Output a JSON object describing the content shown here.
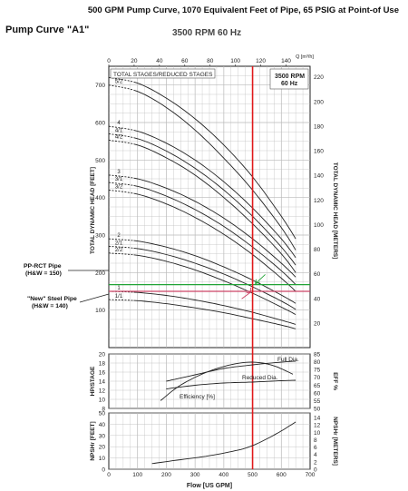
{
  "header": {
    "title": "500 GPM Pump Curve, 1070 Equivalent Feet of Pipe, 65 PSIG at Point-of Use",
    "curve_name": "Pump Curve \"A1\"",
    "speed": "3500 RPM 60 Hz"
  },
  "annotations": {
    "stages_title": "TOTAL STAGES/REDUCED STAGES",
    "rpm_box_line1": "3500 RPM",
    "rpm_box_line2": "60 Hz",
    "pprct_line1": "PP-RCT Pipe",
    "pprct_line2": "(H&W = 150)",
    "steel_line1": "\"New\" Steel Pipe",
    "steel_line2": "(H&W = 140)",
    "full_dia": "Full Dia.",
    "reduced_dia": "Reduced Dia.",
    "efficiency": "Efficiency [%]"
  },
  "colors": {
    "red_line": "#e0191b",
    "green_line": "#21a336",
    "pink_line": "#cc4466",
    "curve": "#222222",
    "grid": "#b9b9b9"
  },
  "chart_data": [
    {
      "type": "line",
      "name": "head",
      "xlabel": "Flow [US GPM]",
      "ylabel": "TOTAL DYNAMIC HEAD [FEET]",
      "y2label": "TOTAL DYNAMIC HEAD [METERS]",
      "x2label": "Q [m³/h]",
      "xlim": [
        0,
        700
      ],
      "ylim": [
        0,
        750
      ],
      "x_ticks": [
        0,
        100,
        200,
        300,
        400,
        500,
        600,
        700
      ],
      "y_ticks": [
        100,
        200,
        300,
        400,
        500,
        600,
        700
      ],
      "x2_ticks": [
        0,
        20,
        40,
        60,
        80,
        100,
        120,
        140
      ],
      "y2_ticks": [
        20,
        40,
        60,
        80,
        100,
        120,
        140,
        160,
        180,
        200,
        220
      ],
      "series": [
        {
          "name": "5/1",
          "x": [
            0,
            100,
            200,
            300,
            400,
            500,
            600,
            650
          ],
          "y": [
            720,
            705,
            665,
            610,
            540,
            455,
            350,
            290
          ]
        },
        {
          "name": "5/2",
          "x": [
            0,
            100,
            200,
            300,
            400,
            500,
            600,
            650
          ],
          "y": [
            700,
            683,
            640,
            580,
            505,
            420,
            320,
            260
          ]
        },
        {
          "name": "4",
          "x": [
            0,
            100,
            200,
            300,
            400,
            500,
            600,
            650
          ],
          "y": [
            590,
            577,
            545,
            500,
            442,
            372,
            290,
            240
          ]
        },
        {
          "name": "4/1",
          "x": [
            0,
            100,
            200,
            300,
            400,
            500,
            600,
            650
          ],
          "y": [
            570,
            557,
            524,
            478,
            420,
            350,
            268,
            220
          ]
        },
        {
          "name": "4/2",
          "x": [
            0,
            100,
            200,
            300,
            400,
            500,
            600,
            650
          ],
          "y": [
            553,
            540,
            506,
            460,
            400,
            330,
            250,
            200
          ]
        },
        {
          "name": "3",
          "x": [
            0,
            100,
            200,
            300,
            400,
            500,
            600,
            650
          ],
          "y": [
            460,
            450,
            425,
            390,
            345,
            290,
            225,
            188
          ]
        },
        {
          "name": "3/1",
          "x": [
            0,
            100,
            200,
            300,
            400,
            500,
            600,
            650
          ],
          "y": [
            440,
            430,
            404,
            368,
            323,
            268,
            205,
            168
          ]
        },
        {
          "name": "3/2",
          "x": [
            0,
            100,
            200,
            300,
            400,
            500,
            600,
            650
          ],
          "y": [
            420,
            409,
            383,
            347,
            302,
            248,
            185,
            150
          ]
        },
        {
          "name": "2",
          "x": [
            0,
            100,
            200,
            300,
            400,
            500,
            600,
            650
          ],
          "y": [
            290,
            284,
            268,
            245,
            215,
            180,
            140,
            118
          ]
        },
        {
          "name": "2/1",
          "x": [
            0,
            100,
            200,
            300,
            400,
            500,
            600,
            650
          ],
          "y": [
            270,
            264,
            248,
            225,
            196,
            162,
            124,
            102
          ]
        },
        {
          "name": "2/2",
          "x": [
            0,
            100,
            200,
            300,
            400,
            500,
            600,
            650
          ],
          "y": [
            252,
            246,
            230,
            207,
            178,
            145,
            108,
            88
          ]
        },
        {
          "name": "1",
          "x": [
            0,
            100,
            200,
            300,
            400,
            500,
            600,
            650
          ],
          "y": [
            150,
            147,
            139,
            127,
            112,
            94,
            73,
            62
          ]
        },
        {
          "name": "1/1",
          "x": [
            0,
            100,
            200,
            300,
            400,
            500,
            600,
            650
          ],
          "y": [
            128,
            125,
            117,
            106,
            93,
            77,
            60,
            50
          ]
        }
      ],
      "system_curves": [
        {
          "name": "PP-RCT Pipe (H&W = 150)",
          "x": [
            0,
            500,
            700
          ],
          "y": [
            168,
            168,
            168
          ]
        },
        {
          "name": "\"New\" Steel Pipe (H&W = 140)",
          "x": [
            0,
            500,
            700
          ],
          "y": [
            150,
            150,
            150
          ]
        }
      ],
      "operating_flow": 500
    },
    {
      "type": "line",
      "name": "power-efficiency",
      "ylabel": "HP/STAGE",
      "y2label": "EFF %",
      "xlim": [
        0,
        700
      ],
      "ylim": [
        8,
        20
      ],
      "y_ticks": [
        8,
        10,
        12,
        14,
        16,
        18,
        20
      ],
      "y2_ticks": [
        50,
        55,
        60,
        65,
        70,
        75,
        80,
        85
      ],
      "y2lim": [
        50,
        85
      ],
      "series": [
        {
          "name": "Full Dia.",
          "axis": "left",
          "x": [
            200,
            300,
            400,
            500,
            600,
            650
          ],
          "y": [
            14.0,
            15.4,
            16.8,
            17.6,
            18.2,
            18.4
          ]
        },
        {
          "name": "Reduced Dia.",
          "axis": "left",
          "x": [
            200,
            300,
            400,
            500,
            600,
            650
          ],
          "y": [
            12.3,
            13.1,
            13.6,
            13.8,
            14.1,
            14.2
          ]
        },
        {
          "name": "Efficiency [%]",
          "axis": "right",
          "x": [
            180,
            250,
            350,
            450,
            520,
            580,
            640
          ],
          "y": [
            55,
            65,
            74,
            79,
            79.5,
            77,
            72
          ]
        }
      ]
    },
    {
      "type": "line",
      "name": "npsh",
      "ylabel": "NPSHr [FEET]",
      "y2label": "NPSHr [METERS]",
      "xlim": [
        0,
        700
      ],
      "ylim": [
        0,
        50
      ],
      "y_ticks": [
        0,
        10,
        20,
        30,
        40,
        50
      ],
      "y2_ticks": [
        0,
        2,
        4,
        6,
        8,
        10,
        12,
        14
      ],
      "series": [
        {
          "name": "NPSHr",
          "x": [
            150,
            250,
            350,
            450,
            500,
            550,
            600,
            650
          ],
          "y": [
            5,
            8.5,
            12,
            17,
            21,
            27,
            34,
            42
          ]
        }
      ]
    }
  ]
}
